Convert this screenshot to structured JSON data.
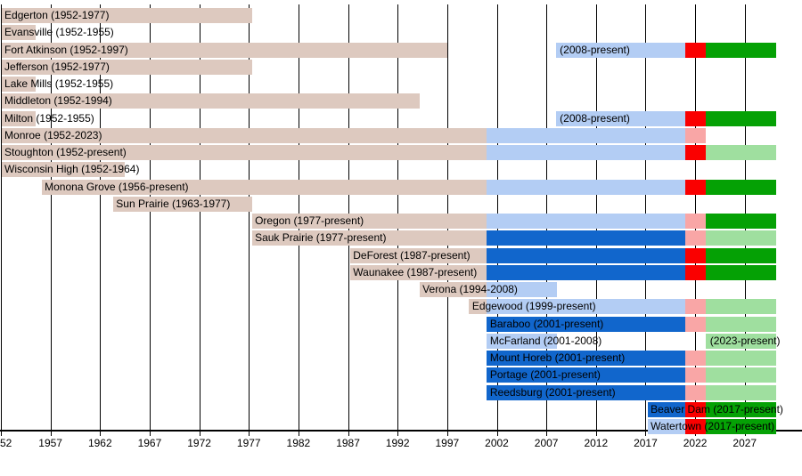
{
  "chart_data": {
    "type": "timeline",
    "description": "Horizontal membership timeline (Gantt-style) of schools with year ranges",
    "axis": {
      "unit": "year",
      "range": [
        1952,
        2030.2
      ],
      "grid": true,
      "ticks": [
        {
          "label": "52",
          "year": 1952
        },
        {
          "label": "1957",
          "year": 1957
        },
        {
          "label": "1962",
          "year": 1962
        },
        {
          "label": "1967",
          "year": 1967
        },
        {
          "label": "1972",
          "year": 1972
        },
        {
          "label": "1977",
          "year": 1977
        },
        {
          "label": "1982",
          "year": 1982
        },
        {
          "label": "1987",
          "year": 1987
        },
        {
          "label": "1992",
          "year": 1992
        },
        {
          "label": "1997",
          "year": 1997
        },
        {
          "label": "2002",
          "year": 2002
        },
        {
          "label": "2007",
          "year": 2007
        },
        {
          "label": "2012",
          "year": 2012
        },
        {
          "label": "2017",
          "year": 2017
        },
        {
          "label": "2022",
          "year": 2022
        },
        {
          "label": "2027",
          "year": 2027
        }
      ]
    },
    "colors": {
      "tan": "#ddc9bf",
      "light_blue": "#b3cdf4",
      "bright_blue": "#1166cc",
      "red": "#fa0000",
      "pink": "#f9a6a6",
      "green": "#05a105",
      "light_green": "#9fdf9f"
    },
    "rows": [
      {
        "label": "Edgerton (1952-1977)",
        "segments": [
          {
            "from": 1952.05,
            "to": 1977.3,
            "color": "tan"
          }
        ]
      },
      {
        "label": "Evansville (1952-1955)",
        "segments": [
          {
            "from": 1952.05,
            "to": 1955.5,
            "color": "tan"
          }
        ]
      },
      {
        "label": "Fort Atkinson (1952-1997)",
        "segments": [
          {
            "from": 1952.05,
            "to": 1997.0,
            "color": "tan"
          },
          {
            "from": 2008.0,
            "to": 2021.0,
            "color": "light_blue"
          },
          {
            "from": 2021.0,
            "to": 2023.1,
            "color": "red"
          },
          {
            "from": 2023.1,
            "to": 2030.2,
            "color": "green"
          }
        ],
        "extra_labels": [
          {
            "text": "(2008-present)",
            "year": 2008.35
          }
        ]
      },
      {
        "label": "Jefferson (1952-1977)",
        "segments": [
          {
            "from": 1952.05,
            "to": 1977.3,
            "color": "tan"
          }
        ]
      },
      {
        "label": "Lake Mills (1952-1955)",
        "segments": [
          {
            "from": 1952.05,
            "to": 1955.5,
            "color": "tan"
          }
        ]
      },
      {
        "label": "Middleton (1952-1994)",
        "segments": [
          {
            "from": 1952.05,
            "to": 1994.2,
            "color": "tan"
          }
        ]
      },
      {
        "label": "Milton (1952-1955)",
        "segments": [
          {
            "from": 1952.05,
            "to": 1955.5,
            "color": "tan"
          },
          {
            "from": 2008.0,
            "to": 2021.0,
            "color": "light_blue"
          },
          {
            "from": 2021.0,
            "to": 2023.1,
            "color": "red"
          },
          {
            "from": 2023.1,
            "to": 2030.2,
            "color": "green"
          }
        ],
        "extra_labels": [
          {
            "text": "(2008-present)",
            "year": 2008.35
          }
        ]
      },
      {
        "label": "Monroe (1952-2023)",
        "segments": [
          {
            "from": 1952.05,
            "to": 2001.0,
            "color": "tan"
          },
          {
            "from": 2001.0,
            "to": 2021.0,
            "color": "light_blue"
          },
          {
            "from": 2021.0,
            "to": 2023.1,
            "color": "pink"
          }
        ]
      },
      {
        "label": "Stoughton (1952-present)",
        "segments": [
          {
            "from": 1952.05,
            "to": 2001.0,
            "color": "tan"
          },
          {
            "from": 2001.0,
            "to": 2021.0,
            "color": "light_blue"
          },
          {
            "from": 2021.0,
            "to": 2023.1,
            "color": "red"
          },
          {
            "from": 2023.1,
            "to": 2030.2,
            "color": "light_green"
          }
        ]
      },
      {
        "label": "Wisconsin High (1952-1964)",
        "segments": [
          {
            "from": 1952.05,
            "to": 1964.5,
            "color": "tan"
          }
        ]
      },
      {
        "label": "Monona Grove (1956-present)",
        "segments": [
          {
            "from": 1956.1,
            "to": 2001.0,
            "color": "tan"
          },
          {
            "from": 2001.0,
            "to": 2021.0,
            "color": "light_blue"
          },
          {
            "from": 2021.0,
            "to": 2023.1,
            "color": "red"
          },
          {
            "from": 2023.1,
            "to": 2030.2,
            "color": "green"
          }
        ]
      },
      {
        "label": "Sun Prairie (1963-1977)",
        "segments": [
          {
            "from": 1963.3,
            "to": 1977.3,
            "color": "tan"
          }
        ]
      },
      {
        "label": "Oregon (1977-present)",
        "segments": [
          {
            "from": 1977.3,
            "to": 2001.0,
            "color": "tan"
          },
          {
            "from": 2001.0,
            "to": 2021.0,
            "color": "light_blue"
          },
          {
            "from": 2021.0,
            "to": 2023.1,
            "color": "pink"
          },
          {
            "from": 2023.1,
            "to": 2030.2,
            "color": "green"
          }
        ]
      },
      {
        "label": "Sauk Prairie (1977-present)",
        "segments": [
          {
            "from": 1977.3,
            "to": 2001.0,
            "color": "tan"
          },
          {
            "from": 2001.0,
            "to": 2021.0,
            "color": "bright_blue"
          },
          {
            "from": 2021.0,
            "to": 2023.1,
            "color": "pink"
          },
          {
            "from": 2023.1,
            "to": 2030.2,
            "color": "light_green"
          }
        ]
      },
      {
        "label": "DeForest (1987-present)",
        "segments": [
          {
            "from": 1987.2,
            "to": 2001.0,
            "color": "tan"
          },
          {
            "from": 2001.0,
            "to": 2021.0,
            "color": "bright_blue"
          },
          {
            "from": 2021.0,
            "to": 2023.1,
            "color": "red"
          },
          {
            "from": 2023.1,
            "to": 2030.2,
            "color": "green"
          }
        ]
      },
      {
        "label": "Waunakee (1987-present)",
        "segments": [
          {
            "from": 1987.2,
            "to": 2001.0,
            "color": "tan"
          },
          {
            "from": 2001.0,
            "to": 2021.0,
            "color": "bright_blue"
          },
          {
            "from": 2021.0,
            "to": 2023.1,
            "color": "red"
          },
          {
            "from": 2023.1,
            "to": 2030.2,
            "color": "green"
          }
        ]
      },
      {
        "label": "Verona (1994-2008)",
        "segments": [
          {
            "from": 1994.2,
            "to": 2001.0,
            "color": "tan"
          },
          {
            "from": 2001.0,
            "to": 2008.1,
            "color": "light_blue"
          }
        ]
      },
      {
        "label": "Edgewood (1999-present)",
        "segments": [
          {
            "from": 1999.2,
            "to": 2001.0,
            "color": "tan"
          },
          {
            "from": 2001.0,
            "to": 2021.0,
            "color": "light_blue"
          },
          {
            "from": 2021.0,
            "to": 2023.1,
            "color": "pink"
          },
          {
            "from": 2023.1,
            "to": 2030.2,
            "color": "light_green"
          }
        ]
      },
      {
        "label": "Baraboo (2001-present)",
        "segments": [
          {
            "from": 2001.0,
            "to": 2021.0,
            "color": "bright_blue"
          },
          {
            "from": 2021.0,
            "to": 2023.1,
            "color": "pink"
          },
          {
            "from": 2023.1,
            "to": 2030.2,
            "color": "light_green"
          }
        ]
      },
      {
        "label": "McFarland (2001-2008)",
        "segments": [
          {
            "from": 2001.0,
            "to": 2008.1,
            "color": "light_blue"
          },
          {
            "from": 2023.1,
            "to": 2030.2,
            "color": "light_green"
          }
        ],
        "extra_labels": [
          {
            "text": "(2023-present)",
            "year": 2023.5
          }
        ]
      },
      {
        "label": "Mount Horeb (2001-present)",
        "segments": [
          {
            "from": 2001.0,
            "to": 2021.0,
            "color": "bright_blue"
          },
          {
            "from": 2021.0,
            "to": 2023.1,
            "color": "pink"
          },
          {
            "from": 2023.1,
            "to": 2030.2,
            "color": "light_green"
          }
        ]
      },
      {
        "label": "Portage (2001-present)",
        "segments": [
          {
            "from": 2001.0,
            "to": 2021.0,
            "color": "bright_blue"
          },
          {
            "from": 2021.0,
            "to": 2023.1,
            "color": "pink"
          },
          {
            "from": 2023.1,
            "to": 2030.2,
            "color": "light_green"
          }
        ]
      },
      {
        "label": "Reedsburg (2001-present)",
        "segments": [
          {
            "from": 2001.0,
            "to": 2021.0,
            "color": "bright_blue"
          },
          {
            "from": 2021.0,
            "to": 2023.1,
            "color": "pink"
          },
          {
            "from": 2023.1,
            "to": 2030.2,
            "color": "light_green"
          }
        ]
      },
      {
        "label": "Beaver Dam (2017-present)",
        "segments": [
          {
            "from": 2017.2,
            "to": 2021.0,
            "color": "bright_blue"
          },
          {
            "from": 2021.0,
            "to": 2023.1,
            "color": "red"
          },
          {
            "from": 2023.1,
            "to": 2030.2,
            "color": "green"
          }
        ]
      },
      {
        "label": "Watertown (2017-present)",
        "segments": [
          {
            "from": 2017.2,
            "to": 2021.0,
            "color": "light_blue"
          },
          {
            "from": 2021.0,
            "to": 2023.1,
            "color": "red"
          },
          {
            "from": 2023.1,
            "to": 2030.2,
            "color": "green"
          }
        ]
      }
    ]
  }
}
